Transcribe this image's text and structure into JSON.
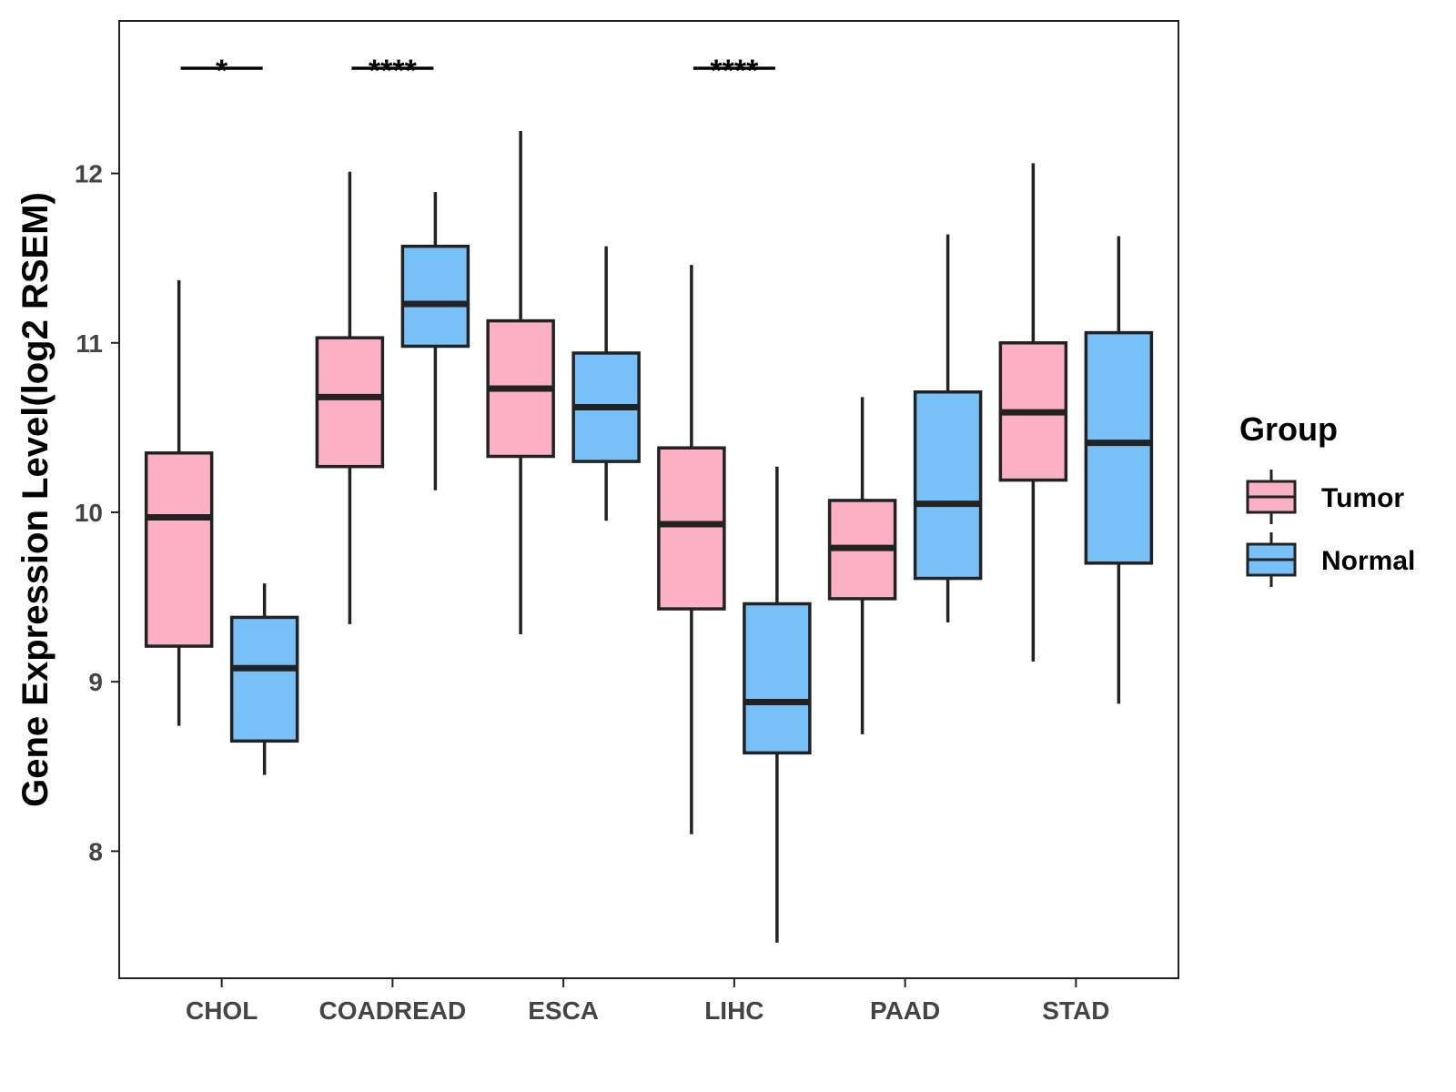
{
  "chart_data": {
    "type": "box",
    "title": "",
    "xlabel": "",
    "ylabel": "Gene Expression Level(log2 RSEM)",
    "ylim": [
      7.25,
      12.9
    ],
    "yticks": [
      8,
      9,
      10,
      11,
      12
    ],
    "grid": false,
    "legend": {
      "title": "Group",
      "placement": "right"
    },
    "categories": [
      "CHOL",
      "COADREAD",
      "ESCA",
      "LIHC",
      "PAAD",
      "STAD"
    ],
    "series": [
      {
        "name": "Tumor",
        "color": "#FBB1C3",
        "boxes": [
          {
            "min": 8.74,
            "q1": 9.21,
            "median": 9.97,
            "q3": 10.35,
            "max": 11.37
          },
          {
            "min": 9.34,
            "q1": 10.27,
            "median": 10.68,
            "q3": 11.03,
            "max": 12.01
          },
          {
            "min": 9.28,
            "q1": 10.33,
            "median": 10.73,
            "q3": 11.13,
            "max": 12.25
          },
          {
            "min": 8.1,
            "q1": 9.43,
            "median": 9.93,
            "q3": 10.38,
            "max": 11.46
          },
          {
            "min": 8.69,
            "q1": 9.49,
            "median": 9.79,
            "q3": 10.07,
            "max": 10.68
          },
          {
            "min": 9.12,
            "q1": 10.19,
            "median": 10.59,
            "q3": 11.0,
            "max": 12.06
          }
        ]
      },
      {
        "name": "Normal",
        "color": "#77C0F8",
        "boxes": [
          {
            "min": 8.45,
            "q1": 8.65,
            "median": 9.08,
            "q3": 9.38,
            "max": 9.58
          },
          {
            "min": 10.13,
            "q1": 10.98,
            "median": 11.23,
            "q3": 11.57,
            "max": 11.89
          },
          {
            "min": 9.95,
            "q1": 10.3,
            "median": 10.62,
            "q3": 10.94,
            "max": 11.57
          },
          {
            "min": 7.46,
            "q1": 8.58,
            "median": 8.88,
            "q3": 9.46,
            "max": 10.27
          },
          {
            "min": 9.35,
            "q1": 9.61,
            "median": 10.05,
            "q3": 10.71,
            "max": 11.64
          },
          {
            "min": 8.87,
            "q1": 9.7,
            "median": 10.41,
            "q3": 11.06,
            "max": 11.63
          }
        ]
      }
    ],
    "annotations": [
      {
        "category": "CHOL",
        "label": "*"
      },
      {
        "category": "COADREAD",
        "label": "****"
      },
      {
        "category": "LIHC",
        "label": "****"
      }
    ],
    "outline_color": "#222222"
  }
}
